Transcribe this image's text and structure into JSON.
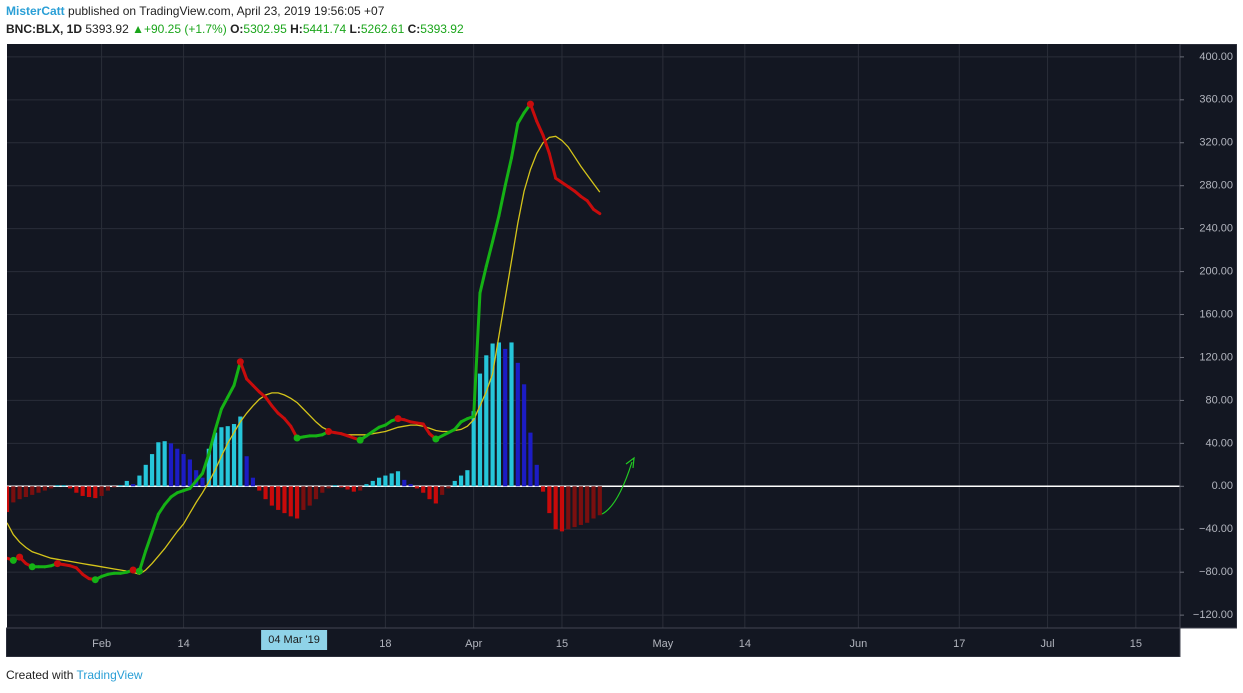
{
  "header": {
    "author": "MisterCatt",
    "published": "published on TradingView.com, April 23, 2019 19:56:05 +07",
    "symbol": "BNC:BLX, 1D",
    "last": "5393.92",
    "arrow": "▲",
    "change": "+90.25 (+1.7%)",
    "open_label": "O:",
    "open": "5302.95",
    "high_label": "H:",
    "high": "5441.74",
    "low_label": "L:",
    "low": "5262.61",
    "close_label": "C:",
    "close": "5393.92"
  },
  "footer": {
    "created": "Created with",
    "brand": "TradingView"
  },
  "chart_data": {
    "type": "combo",
    "x": [
      "2019-01-17",
      "2019-01-18",
      "2019-01-19",
      "2019-01-20",
      "2019-01-21",
      "2019-01-22",
      "2019-01-23",
      "2019-01-24",
      "2019-01-25",
      "2019-01-26",
      "2019-01-27",
      "2019-01-28",
      "2019-01-29",
      "2019-01-30",
      "2019-01-31",
      "2019-02-01",
      "2019-02-02",
      "2019-02-03",
      "2019-02-04",
      "2019-02-05",
      "2019-02-06",
      "2019-02-07",
      "2019-02-08",
      "2019-02-09",
      "2019-02-10",
      "2019-02-11",
      "2019-02-12",
      "2019-02-13",
      "2019-02-14",
      "2019-02-15",
      "2019-02-16",
      "2019-02-17",
      "2019-02-18",
      "2019-02-19",
      "2019-02-20",
      "2019-02-21",
      "2019-02-22",
      "2019-02-23",
      "2019-02-24",
      "2019-02-25",
      "2019-02-26",
      "2019-02-27",
      "2019-02-28",
      "2019-03-01",
      "2019-03-02",
      "2019-03-03",
      "2019-03-04",
      "2019-03-05",
      "2019-03-06",
      "2019-03-07",
      "2019-03-08",
      "2019-03-09",
      "2019-03-10",
      "2019-03-11",
      "2019-03-12",
      "2019-03-13",
      "2019-03-14",
      "2019-03-15",
      "2019-03-16",
      "2019-03-17",
      "2019-03-18",
      "2019-03-19",
      "2019-03-20",
      "2019-03-21",
      "2019-03-22",
      "2019-03-23",
      "2019-03-24",
      "2019-03-25",
      "2019-03-26",
      "2019-03-27",
      "2019-03-28",
      "2019-03-29",
      "2019-03-30",
      "2019-03-31",
      "2019-04-01",
      "2019-04-02",
      "2019-04-03",
      "2019-04-04",
      "2019-04-05",
      "2019-04-06",
      "2019-04-07",
      "2019-04-08",
      "2019-04-09",
      "2019-04-10",
      "2019-04-11",
      "2019-04-12",
      "2019-04-13",
      "2019-04-14",
      "2019-04-15",
      "2019-04-16",
      "2019-04-17",
      "2019-04-18",
      "2019-04-19",
      "2019-04-20",
      "2019-04-21"
    ],
    "series": [
      {
        "type": "histogram",
        "colors": [
          "#26c6da",
          "#1c1cc4",
          "#c80a0a",
          "#7a0f0f"
        ],
        "values": [
          -24,
          -15,
          -12,
          -10,
          -8,
          -6,
          -4,
          -2,
          1,
          1,
          -2,
          -6,
          -9,
          -10,
          -11,
          -9,
          -4,
          -1,
          1,
          5,
          2,
          10,
          20,
          30,
          41,
          42,
          40,
          35,
          30,
          25,
          15,
          8,
          35,
          50,
          55,
          56,
          58,
          65,
          28,
          8,
          -4,
          -12,
          -18,
          -22,
          -25,
          -28,
          -30,
          -22,
          -18,
          -12,
          -6,
          -2,
          1,
          -1,
          -3,
          -5,
          -4,
          2,
          5,
          8,
          10,
          12,
          14,
          6,
          2,
          -2,
          -6,
          -12,
          -16,
          -8,
          -2,
          5,
          10,
          15,
          70,
          105,
          122,
          133,
          134,
          128,
          134,
          115,
          95,
          50,
          20,
          -5,
          -25,
          -40,
          -42,
          -40,
          -38,
          -36,
          -34,
          -30,
          -27
        ]
      },
      {
        "type": "line",
        "width": 1.3,
        "color": "#d4c41a",
        "values": [
          -34,
          -45,
          -52,
          -57,
          -61,
          -63,
          -65,
          -67,
          -68,
          -69,
          -70,
          -71,
          -72,
          -73,
          -74,
          -75,
          -76,
          -77,
          -78,
          -79,
          -80,
          -82,
          -78,
          -72,
          -65,
          -58,
          -50,
          -42,
          -35,
          -25,
          -15,
          -6,
          4,
          15,
          28,
          40,
          50,
          60,
          68,
          75,
          81,
          85,
          87,
          87,
          85,
          82,
          78,
          72,
          66,
          60,
          55,
          52,
          50,
          49,
          48,
          48,
          48,
          48,
          49,
          50,
          51,
          53,
          55,
          56,
          57,
          57,
          56,
          54,
          52,
          51,
          51,
          52,
          53,
          56,
          62,
          75,
          88,
          105,
          140,
          175,
          210,
          245,
          275,
          295,
          310,
          320,
          325,
          326,
          322,
          316,
          307,
          298,
          290,
          282,
          274
        ]
      },
      {
        "type": "line",
        "width": 3,
        "up_color": "#15b215",
        "down_color": "#c80c0c",
        "values": [
          -67,
          -69,
          -66,
          -72,
          -75,
          -75,
          -75,
          -74,
          -72,
          -73,
          -74,
          -76,
          -82,
          -86,
          -87,
          -84,
          -82,
          -81,
          -81,
          -80,
          -78,
          -79,
          -60,
          -43,
          -26,
          -17,
          -10,
          -6,
          -4,
          -2,
          5,
          12,
          30,
          52,
          72,
          83,
          94,
          116,
          100,
          94,
          88,
          83,
          75,
          68,
          63,
          56,
          45,
          46,
          47,
          47,
          48,
          51,
          50,
          49,
          47,
          45,
          43,
          47,
          51,
          55,
          57,
          61,
          63,
          62,
          60,
          59,
          58,
          49,
          44,
          47,
          50,
          53,
          60,
          63,
          65,
          180,
          205,
          228,
          252,
          280,
          306,
          338,
          348,
          356,
          340,
          327,
          310,
          287,
          283,
          279,
          275,
          270,
          266,
          258,
          254
        ]
      }
    ],
    "xlim": [
      "2019-01-17",
      "2019-07-22"
    ],
    "ylim": [
      -132,
      412
    ],
    "xticks": [
      {
        "value": "2019-02-01",
        "label": "Feb"
      },
      {
        "value": "2019-02-14",
        "label": "14"
      },
      {
        "value": "2019-03-18",
        "label": "18"
      },
      {
        "value": "2019-04-01",
        "label": "Apr"
      },
      {
        "value": "2019-04-15",
        "label": "15"
      },
      {
        "value": "2019-05-01",
        "label": "May"
      },
      {
        "value": "2019-05-14",
        "label": "14"
      },
      {
        "value": "2019-06-01",
        "label": "Jun"
      },
      {
        "value": "2019-06-17",
        "label": "17"
      },
      {
        "value": "2019-07-01",
        "label": "Jul"
      },
      {
        "value": "2019-07-15",
        "label": "15"
      }
    ],
    "crosshair": {
      "value": "2019-03-04",
      "label": "04 Mar '19"
    },
    "yticks": [
      {
        "value": 400,
        "label": "400.00"
      },
      {
        "value": 360,
        "label": "360.00"
      },
      {
        "value": 320,
        "label": "320.00"
      },
      {
        "value": 280,
        "label": "280.00"
      },
      {
        "value": 240,
        "label": "240.00"
      },
      {
        "value": 200,
        "label": "200.00"
      },
      {
        "value": 160,
        "label": "160.00"
      },
      {
        "value": 120,
        "label": "120.00"
      },
      {
        "value": 80,
        "label": "80.00"
      },
      {
        "value": 40,
        "label": "40.00"
      },
      {
        "value": 0,
        "label": "0.00"
      },
      {
        "value": -40,
        "label": "−40.00"
      },
      {
        "value": -80,
        "label": "−80.00"
      },
      {
        "value": -120,
        "label": "−120.00"
      }
    ],
    "grid": true,
    "zero_line": true,
    "background": "#131722",
    "grid_color": "#2a2e39"
  }
}
